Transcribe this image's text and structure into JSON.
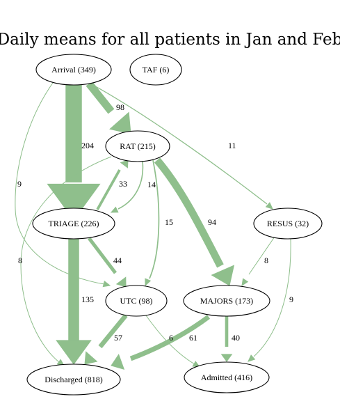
{
  "title": "Daily means for all patients in Jan and Feb",
  "colors": {
    "edge": "#8fbf8c",
    "node_stroke": "#000000",
    "background": "#ffffff"
  },
  "nodes": [
    {
      "id": "arrival",
      "label": "Arrival (349)"
    },
    {
      "id": "taf",
      "label": "TAF (6)"
    },
    {
      "id": "rat",
      "label": "RAT (215)"
    },
    {
      "id": "resus",
      "label": "RESUS (32)"
    },
    {
      "id": "triage",
      "label": "TRIAGE (226)"
    },
    {
      "id": "utc",
      "label": "UTC (98)"
    },
    {
      "id": "majors",
      "label": "MAJORS (173)"
    },
    {
      "id": "discharged",
      "label": "Discharged (818)"
    },
    {
      "id": "admitted",
      "label": "Admitted (416)"
    }
  ],
  "edges": [
    {
      "from": "arrival",
      "to": "triage",
      "value": 204,
      "label": "204"
    },
    {
      "from": "arrival",
      "to": "rat",
      "value": 98,
      "label": "98"
    },
    {
      "from": "arrival",
      "to": "resus",
      "value": 11,
      "label": "11"
    },
    {
      "from": "arrival",
      "to": "utc",
      "value": 9,
      "label": "9"
    },
    {
      "from": "rat",
      "to": "triage",
      "value": 14,
      "label": "14"
    },
    {
      "from": "triage",
      "to": "rat",
      "value": 33,
      "label": "33"
    },
    {
      "from": "rat",
      "to": "utc",
      "value": 15,
      "label": "15"
    },
    {
      "from": "rat",
      "to": "majors",
      "value": 94,
      "label": "94"
    },
    {
      "from": "rat",
      "to": "discharged",
      "value": 8,
      "label": "8"
    },
    {
      "from": "triage",
      "to": "utc",
      "value": 44,
      "label": "44"
    },
    {
      "from": "triage",
      "to": "discharged",
      "value": 135,
      "label": "135"
    },
    {
      "from": "resus",
      "to": "majors",
      "value": 8,
      "label": "8"
    },
    {
      "from": "resus",
      "to": "admitted",
      "value": 9,
      "label": "9"
    },
    {
      "from": "utc",
      "to": "discharged",
      "value": 57,
      "label": "57"
    },
    {
      "from": "utc",
      "to": "admitted",
      "value": 6,
      "label": "6"
    },
    {
      "from": "majors",
      "to": "discharged",
      "value": 61,
      "label": "61"
    },
    {
      "from": "majors",
      "to": "admitted",
      "value": 40,
      "label": "40"
    }
  ]
}
